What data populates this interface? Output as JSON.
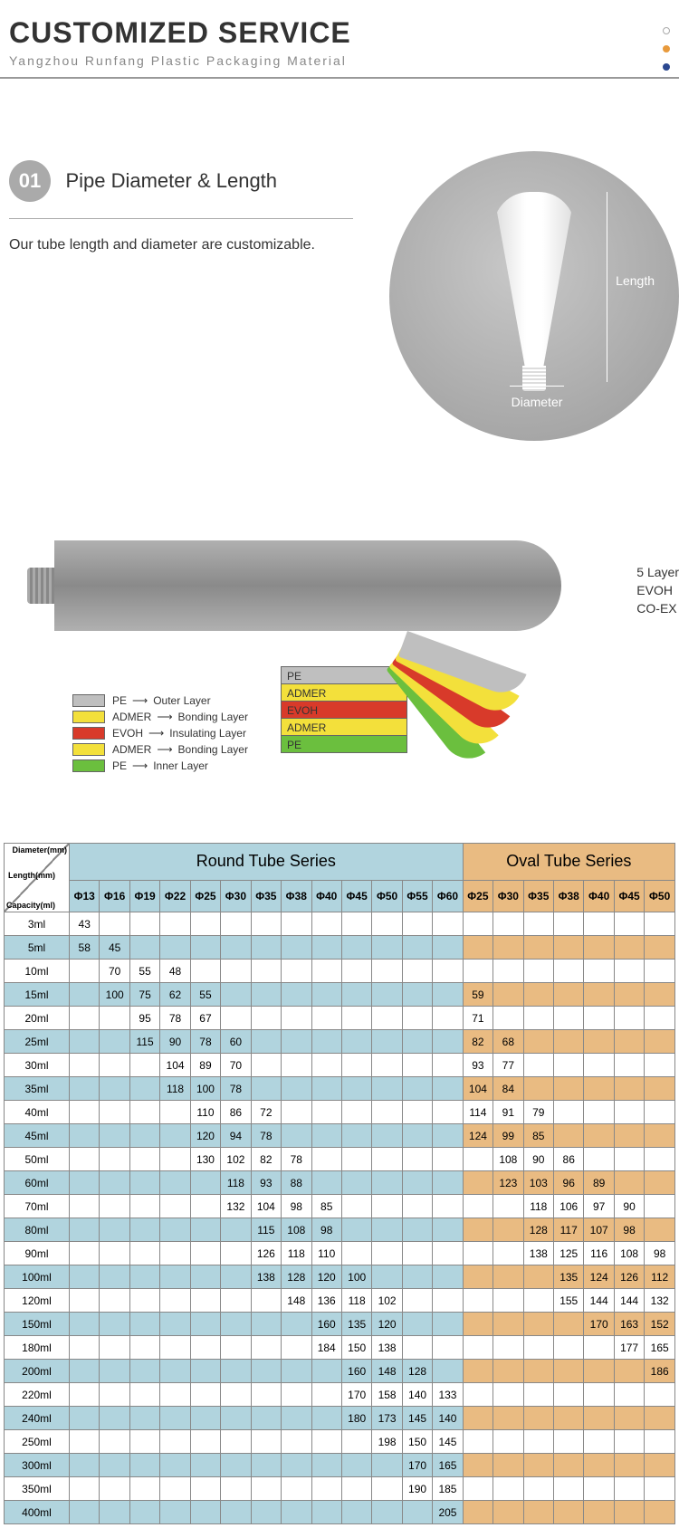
{
  "header": {
    "title": "CUSTOMIZED SERVICE",
    "subtitle": "Yangzhou Runfang Plastic Packaging Material"
  },
  "dot_colors": {
    "d2": "#e89a3c",
    "d3": "#2b4890"
  },
  "section01": {
    "num": "01",
    "title": "Pipe Diameter & Length",
    "desc": "Our tube length and diameter are customizable.",
    "diam_label": "Diameter",
    "len_label": "Length"
  },
  "layers": {
    "right_labels": [
      "5 Layer",
      "EVOH",
      "CO-EX"
    ],
    "boxes": [
      {
        "name": "PE",
        "color": "#bfbfbf"
      },
      {
        "name": "ADMER",
        "color": "#f3e03b"
      },
      {
        "name": "EVOH",
        "color": "#d83a2a"
      },
      {
        "name": "ADMER",
        "color": "#f3e03b"
      },
      {
        "name": "PE",
        "color": "#6bbf3e"
      }
    ],
    "legend": [
      {
        "sw": "#bfbfbf",
        "name": "PE",
        "desc": "Outer Layer"
      },
      {
        "sw": "#f3e03b",
        "name": "ADMER",
        "desc": "Bonding Layer"
      },
      {
        "sw": "#d83a2a",
        "name": "EVOH",
        "desc": "Insulating Layer"
      },
      {
        "sw": "#f3e03b",
        "name": "ADMER",
        "desc": "Bonding Layer"
      },
      {
        "sw": "#6bbf3e",
        "name": "PE",
        "desc": "Inner Layer"
      }
    ]
  },
  "table": {
    "corner": {
      "t1": "Diameter(mm)",
      "t2": "Length(mm)",
      "t3": "Capacity(ml)"
    },
    "round_title": "Round Tube Series",
    "oval_title": "Oval Tube Series",
    "round_diams": [
      "Φ13",
      "Φ16",
      "Φ19",
      "Φ22",
      "Φ25",
      "Φ30",
      "Φ35",
      "Φ38",
      "Φ40",
      "Φ45",
      "Φ50",
      "Φ55",
      "Φ60"
    ],
    "oval_diams": [
      "Φ25",
      "Φ30",
      "Φ35",
      "Φ38",
      "Φ40",
      "Φ45",
      "Φ50"
    ],
    "rows": [
      {
        "cap": "3ml",
        "r": [
          "43",
          "",
          "",
          "",
          "",
          "",
          "",
          "",
          "",
          "",
          "",
          "",
          ""
        ],
        "o": [
          "",
          "",
          "",
          "",
          "",
          "",
          ""
        ]
      },
      {
        "cap": "5ml",
        "r": [
          "58",
          "45",
          "",
          "",
          "",
          "",
          "",
          "",
          "",
          "",
          "",
          "",
          ""
        ],
        "o": [
          "",
          "",
          "",
          "",
          "",
          "",
          ""
        ]
      },
      {
        "cap": "10ml",
        "r": [
          "",
          "70",
          "55",
          "48",
          "",
          "",
          "",
          "",
          "",
          "",
          "",
          "",
          ""
        ],
        "o": [
          "",
          "",
          "",
          "",
          "",
          "",
          ""
        ]
      },
      {
        "cap": "15ml",
        "r": [
          "",
          "100",
          "75",
          "62",
          "55",
          "",
          "",
          "",
          "",
          "",
          "",
          "",
          ""
        ],
        "o": [
          "59",
          "",
          "",
          "",
          "",
          "",
          ""
        ]
      },
      {
        "cap": "20ml",
        "r": [
          "",
          "",
          "95",
          "78",
          "67",
          "",
          "",
          "",
          "",
          "",
          "",
          "",
          ""
        ],
        "o": [
          "71",
          "",
          "",
          "",
          "",
          "",
          ""
        ]
      },
      {
        "cap": "25ml",
        "r": [
          "",
          "",
          "115",
          "90",
          "78",
          "60",
          "",
          "",
          "",
          "",
          "",
          "",
          ""
        ],
        "o": [
          "82",
          "68",
          "",
          "",
          "",
          "",
          ""
        ]
      },
      {
        "cap": "30ml",
        "r": [
          "",
          "",
          "",
          "104",
          "89",
          "70",
          "",
          "",
          "",
          "",
          "",
          "",
          ""
        ],
        "o": [
          "93",
          "77",
          "",
          "",
          "",
          "",
          ""
        ]
      },
      {
        "cap": "35ml",
        "r": [
          "",
          "",
          "",
          "118",
          "100",
          "78",
          "",
          "",
          "",
          "",
          "",
          "",
          ""
        ],
        "o": [
          "104",
          "84",
          "",
          "",
          "",
          "",
          ""
        ]
      },
      {
        "cap": "40ml",
        "r": [
          "",
          "",
          "",
          "",
          "110",
          "86",
          "72",
          "",
          "",
          "",
          "",
          "",
          ""
        ],
        "o": [
          "114",
          "91",
          "79",
          "",
          "",
          "",
          ""
        ]
      },
      {
        "cap": "45ml",
        "r": [
          "",
          "",
          "",
          "",
          "120",
          "94",
          "78",
          "",
          "",
          "",
          "",
          "",
          ""
        ],
        "o": [
          "124",
          "99",
          "85",
          "",
          "",
          "",
          ""
        ]
      },
      {
        "cap": "50ml",
        "r": [
          "",
          "",
          "",
          "",
          "130",
          "102",
          "82",
          "78",
          "",
          "",
          "",
          "",
          ""
        ],
        "o": [
          "",
          "108",
          "90",
          "86",
          "",
          "",
          ""
        ]
      },
      {
        "cap": "60ml",
        "r": [
          "",
          "",
          "",
          "",
          "",
          "118",
          "93",
          "88",
          "",
          "",
          "",
          "",
          ""
        ],
        "o": [
          "",
          "123",
          "103",
          "96",
          "89",
          "",
          ""
        ]
      },
      {
        "cap": "70ml",
        "r": [
          "",
          "",
          "",
          "",
          "",
          "132",
          "104",
          "98",
          "85",
          "",
          "",
          "",
          ""
        ],
        "o": [
          "",
          "",
          "118",
          "106",
          "97",
          "90",
          ""
        ]
      },
      {
        "cap": "80ml",
        "r": [
          "",
          "",
          "",
          "",
          "",
          "",
          "115",
          "108",
          "98",
          "",
          "",
          "",
          ""
        ],
        "o": [
          "",
          "",
          "128",
          "117",
          "107",
          "98",
          ""
        ]
      },
      {
        "cap": "90ml",
        "r": [
          "",
          "",
          "",
          "",
          "",
          "",
          "126",
          "118",
          "110",
          "",
          "",
          "",
          ""
        ],
        "o": [
          "",
          "",
          "138",
          "125",
          "116",
          "108",
          "98"
        ]
      },
      {
        "cap": "100ml",
        "r": [
          "",
          "",
          "",
          "",
          "",
          "",
          "138",
          "128",
          "120",
          "100",
          "",
          "",
          ""
        ],
        "o": [
          "",
          "",
          "",
          "135",
          "124",
          "126",
          "112"
        ]
      },
      {
        "cap": "120ml",
        "r": [
          "",
          "",
          "",
          "",
          "",
          "",
          "",
          "148",
          "136",
          "118",
          "102",
          "",
          ""
        ],
        "o": [
          "",
          "",
          "",
          "155",
          "144",
          "144",
          "132"
        ]
      },
      {
        "cap": "150ml",
        "r": [
          "",
          "",
          "",
          "",
          "",
          "",
          "",
          "",
          "160",
          "135",
          "120",
          "",
          ""
        ],
        "o": [
          "",
          "",
          "",
          "",
          "170",
          "163",
          "152"
        ]
      },
      {
        "cap": "180ml",
        "r": [
          "",
          "",
          "",
          "",
          "",
          "",
          "",
          "",
          "184",
          "150",
          "138",
          "",
          ""
        ],
        "o": [
          "",
          "",
          "",
          "",
          "",
          "177",
          "165"
        ]
      },
      {
        "cap": "200ml",
        "r": [
          "",
          "",
          "",
          "",
          "",
          "",
          "",
          "",
          "",
          "160",
          "148",
          "128",
          ""
        ],
        "o": [
          "",
          "",
          "",
          "",
          "",
          "",
          "186"
        ]
      },
      {
        "cap": "220ml",
        "r": [
          "",
          "",
          "",
          "",
          "",
          "",
          "",
          "",
          "",
          "170",
          "158",
          "140",
          "133"
        ],
        "o": [
          "",
          "",
          "",
          "",
          "",
          "",
          ""
        ]
      },
      {
        "cap": "240ml",
        "r": [
          "",
          "",
          "",
          "",
          "",
          "",
          "",
          "",
          "",
          "180",
          "173",
          "145",
          "140"
        ],
        "o": [
          "",
          "",
          "",
          "",
          "",
          "",
          ""
        ]
      },
      {
        "cap": "250ml",
        "r": [
          "",
          "",
          "",
          "",
          "",
          "",
          "",
          "",
          "",
          "",
          "198",
          "150",
          "145"
        ],
        "o": [
          "",
          "",
          "",
          "",
          "",
          "",
          ""
        ]
      },
      {
        "cap": "300ml",
        "r": [
          "",
          "",
          "",
          "",
          "",
          "",
          "",
          "",
          "",
          "",
          "",
          "170",
          "165"
        ],
        "o": [
          "",
          "",
          "",
          "",
          "",
          "",
          ""
        ]
      },
      {
        "cap": "350ml",
        "r": [
          "",
          "",
          "",
          "",
          "",
          "",
          "",
          "",
          "",
          "",
          "",
          "190",
          "185"
        ],
        "o": [
          "",
          "",
          "",
          "",
          "",
          "",
          ""
        ]
      },
      {
        "cap": "400ml",
        "r": [
          "",
          "",
          "",
          "",
          "",
          "",
          "",
          "",
          "",
          "",
          "",
          "",
          "205"
        ],
        "o": [
          "",
          "",
          "",
          "",
          "",
          "",
          ""
        ]
      }
    ]
  }
}
